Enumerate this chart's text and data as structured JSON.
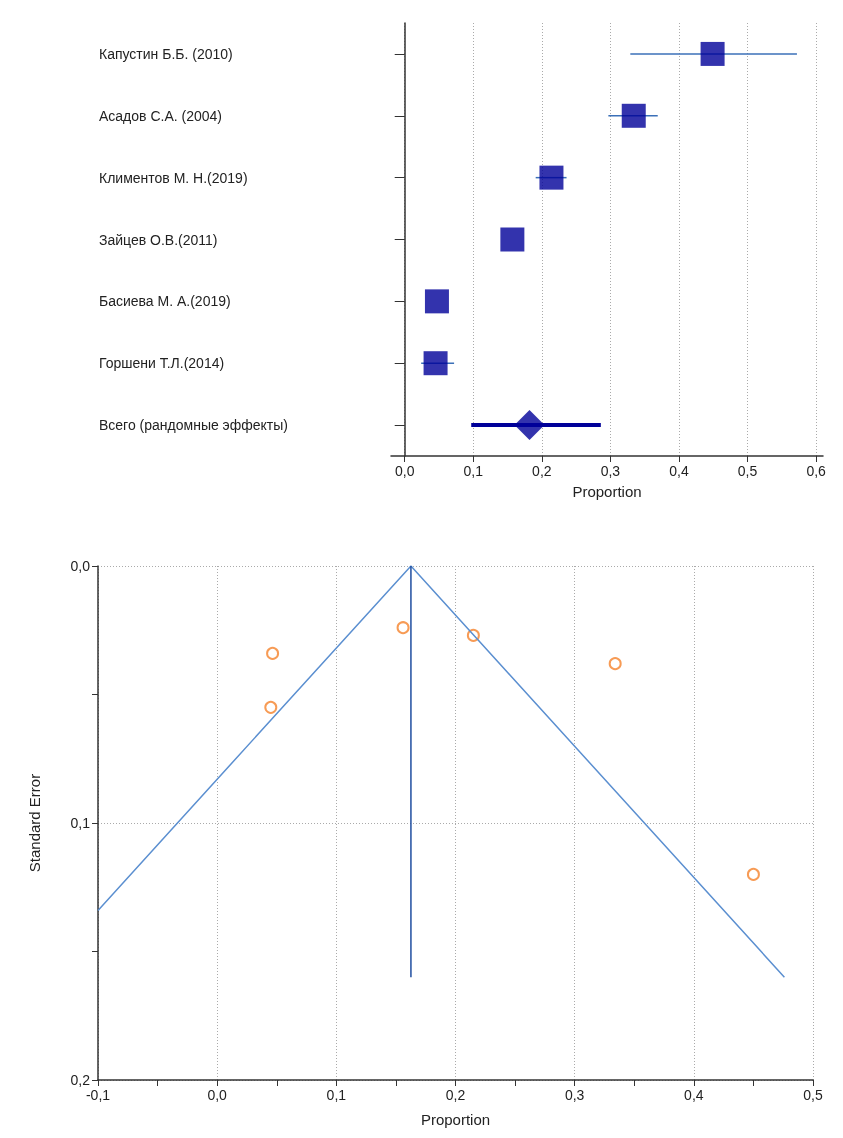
{
  "chart_data": [
    {
      "type": "scatter",
      "orientation": "horizontal",
      "categories": [
        "Капустин Б.Б. (2010)",
        "Асадов С.А. (2004)",
        "Климентов М. Н.(2019)",
        "Зайцев О.В.(2011)",
        "Басиева М. А.(2019)",
        "Горшени Т.Л.(2014)",
        "Всего (рандомные эффекты)"
      ],
      "xlabel": "Proportion",
      "xlim": [
        -0.02,
        0.61
      ],
      "xticks": [
        {
          "value": 0,
          "label": "0,0"
        },
        {
          "value": 0.1,
          "label": "0,1"
        },
        {
          "value": 0.2,
          "label": "0,2"
        },
        {
          "value": 0.3,
          "label": "0,3"
        },
        {
          "value": 0.4,
          "label": "0,4"
        },
        {
          "value": 0.5,
          "label": "0,5"
        },
        {
          "value": 0.6,
          "label": "0,6"
        }
      ],
      "grid": "x",
      "series": [
        {
          "color": "#000099",
          "marker": "square",
          "values": [
            0.449,
            0.334,
            0.214,
            0.157,
            0.047,
            0.045,
            null
          ],
          "errors": [
            [
              0.329,
              0.572
            ],
            [
              0.297,
              0.369
            ],
            [
              0.191,
              0.236
            ],
            null,
            null,
            [
              0.024,
              0.072
            ],
            null
          ]
        },
        {
          "color": "#000099",
          "marker": "diamond",
          "values": [
            null,
            null,
            null,
            null,
            null,
            null,
            0.182
          ],
          "errors": [
            null,
            null,
            null,
            null,
            null,
            null,
            [
              0.097,
              0.286
            ]
          ]
        }
      ]
    },
    {
      "type": "scatter",
      "xlabel": "Proportion",
      "ylabel": "Standard Error",
      "xlim": [
        -0.1,
        0.5
      ],
      "ylim": [
        0.2,
        0
      ],
      "xticks": [
        {
          "value": -0.1,
          "label": "-0,1"
        },
        {
          "value": -0.05,
          "label": null
        },
        {
          "value": 0,
          "label": "0,0"
        },
        {
          "value": 0.05,
          "label": null
        },
        {
          "value": 0.1,
          "label": "0,1"
        },
        {
          "value": 0.15,
          "label": null
        },
        {
          "value": 0.2,
          "label": "0,2"
        },
        {
          "value": 0.25,
          "label": null
        },
        {
          "value": 0.3,
          "label": "0,3"
        },
        {
          "value": 0.35,
          "label": null
        },
        {
          "value": 0.4,
          "label": "0,4"
        },
        {
          "value": 0.45,
          "label": null
        },
        {
          "value": 0.5,
          "label": "0,5"
        }
      ],
      "yticks": [
        {
          "value": 0,
          "label": "0,0"
        },
        {
          "value": 0.05,
          "label": null
        },
        {
          "value": 0.1,
          "label": "0,1"
        },
        {
          "value": 0.15,
          "label": null
        },
        {
          "value": 0.2,
          "label": "0,2"
        }
      ],
      "grid": true,
      "series": [
        {
          "type": "line",
          "color": "#5b8fd0",
          "marker": "none",
          "x": [
            -0.1,
            0.1626,
            0.476
          ],
          "values": [
            0.134,
            0,
            0.16
          ]
        },
        {
          "type": "line",
          "color": "#1f4ea0",
          "marker": "none",
          "x": [
            0.1626,
            0.1626
          ],
          "values": [
            0,
            0.16
          ]
        },
        {
          "type": "scatter",
          "color": "#f5822a",
          "marker": "circle",
          "x": [
            0.0465,
            0.045,
            0.156,
            0.215,
            0.334,
            0.45
          ],
          "values": [
            0.034,
            0.055,
            0.024,
            0.027,
            0.038,
            0.12
          ]
        }
      ]
    }
  ]
}
